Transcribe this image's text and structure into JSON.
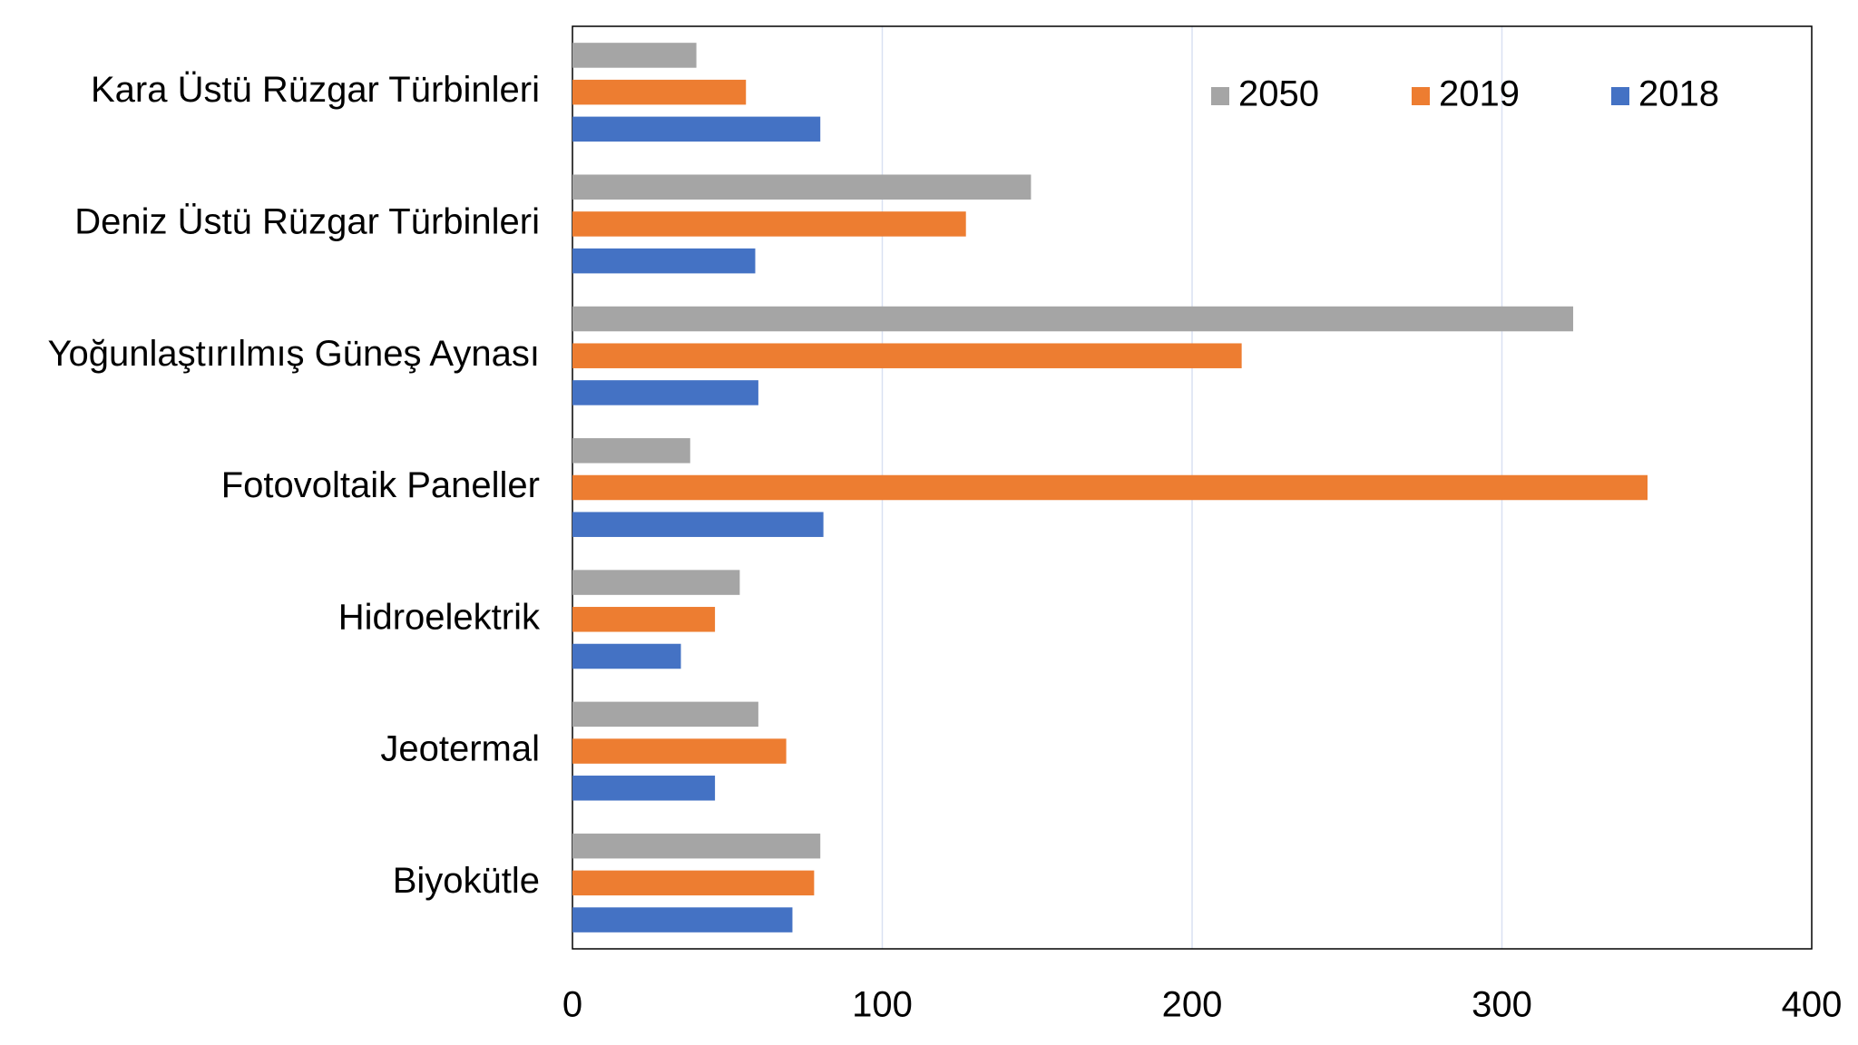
{
  "chart_data": {
    "type": "barh",
    "categories": [
      "Kara Üstü Rüzgar Türbinleri",
      "Deniz Üstü Rüzgar Türbinleri",
      "Yoğunlaştırılmış Güneş Aynası",
      "Fotovoltaik Paneller",
      "Hidroelektrik",
      "Jeotermal",
      "Biyokütle"
    ],
    "series": [
      {
        "name": "2050",
        "color": "#a5a5a5",
        "values": [
          40,
          148,
          323,
          38,
          54,
          60,
          80
        ]
      },
      {
        "name": "2019",
        "color": "#ed7d31",
        "values": [
          56,
          127,
          216,
          347,
          46,
          69,
          78
        ]
      },
      {
        "name": "2018",
        "color": "#4472c4",
        "values": [
          80,
          59,
          60,
          81,
          35,
          46,
          71
        ]
      }
    ],
    "xlim": [
      0,
      400
    ],
    "xticks": [
      0,
      100,
      200,
      300,
      400
    ],
    "grid": true,
    "legend": "top-right"
  }
}
